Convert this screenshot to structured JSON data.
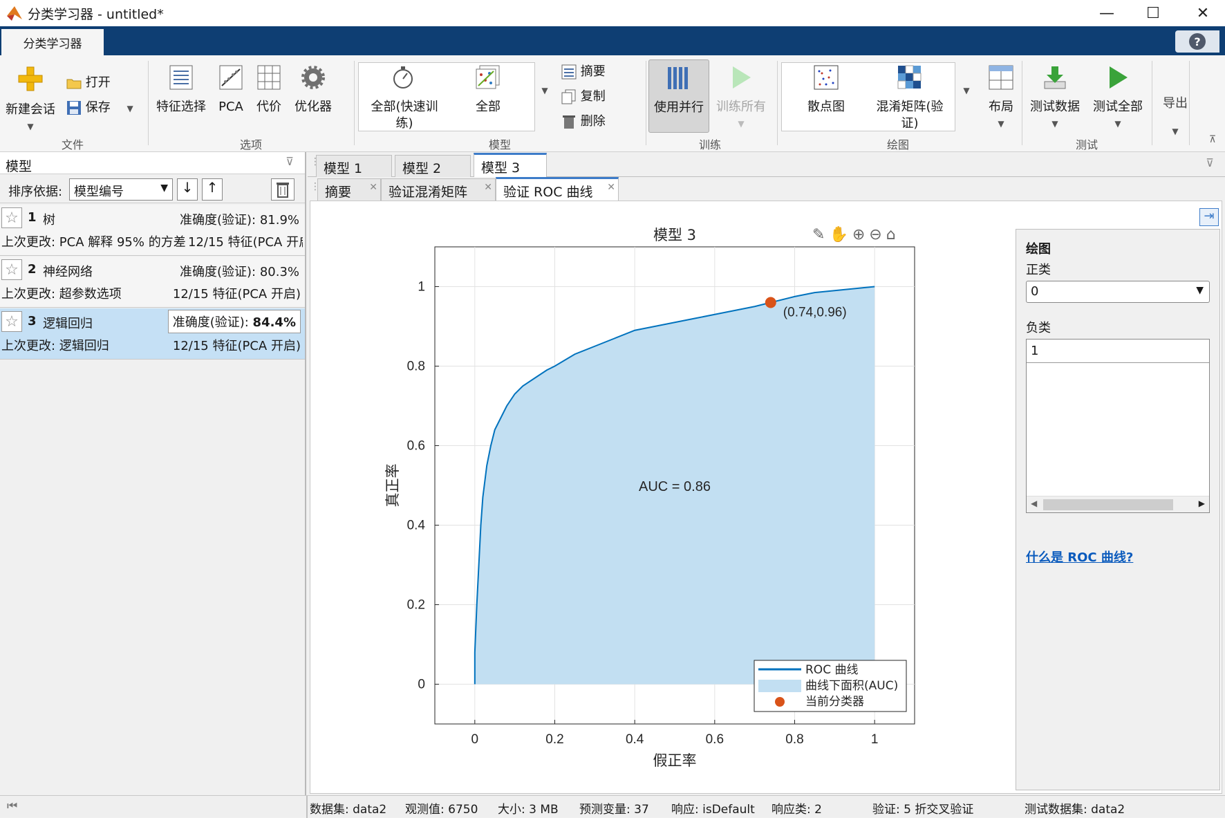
{
  "window": {
    "title": "分类学习器 - untitled*",
    "minimize": "—",
    "maximize": "☐",
    "close": "✕"
  },
  "ribbon_tab": "分类学习器",
  "help": "?",
  "ribbon": {
    "file": {
      "new_session": "新建会话",
      "open": "打开",
      "save": "保存",
      "section": "文件"
    },
    "options": {
      "feature_selection": "特征选择",
      "pca": "PCA",
      "cost": "代价",
      "optimizer": "优化器",
      "section": "选项"
    },
    "models": {
      "all_quick": "全部(快速训练)",
      "all_quick_l1": "全部(快速训",
      "all_quick_l2": "练)",
      "all": "全部",
      "summary": "摘要",
      "duplicate": "复制",
      "delete": "删除",
      "section": "模型"
    },
    "train": {
      "use_parallel": "使用并行",
      "train_all": "训练所有",
      "section": "训练"
    },
    "plot": {
      "scatter": "散点图",
      "confusion_l1": "混淆矩阵(验",
      "confusion_l2": "证)",
      "layout": "布局",
      "section": "绘图"
    },
    "test": {
      "test_data": "测试数据",
      "test_all": "测试全部",
      "section": "测试"
    },
    "export": {
      "label": "导出"
    }
  },
  "left_panel": {
    "header": "模型",
    "sort_label": "排序依据:",
    "sort_value": "模型编号",
    "models": [
      {
        "num": "1",
        "name": "树",
        "accuracy": "准确度(验证): 81.9%",
        "last_change": "上次更改: PCA 解释 95% 的方差",
        "features": "12/15 特征(PCA 开启"
      },
      {
        "num": "2",
        "name": "神经网络",
        "accuracy": "准确度(验证): 80.3%",
        "last_change": "上次更改: 超参数选项",
        "features": "12/15 特征(PCA 开启)"
      },
      {
        "num": "3",
        "name": "逻辑回归",
        "accuracy_label": "准确度(验证): ",
        "accuracy_value": "84.4%",
        "last_change": "上次更改: 逻辑回归",
        "features": "12/15 特征(PCA 开启)"
      }
    ]
  },
  "model_tabs": [
    "模型 1",
    "模型 2",
    "模型 3"
  ],
  "sub_tabs": [
    "摘要",
    "验证混淆矩阵",
    "验证 ROC 曲线"
  ],
  "chart_data": {
    "type": "area",
    "title": "模型 3",
    "xlabel": "假正率",
    "ylabel": "真正率",
    "xlim": [
      -0.1,
      1.1
    ],
    "ylim": [
      -0.1,
      1.1
    ],
    "xticks": [
      "0",
      "0.2",
      "0.4",
      "0.6",
      "0.8",
      "1"
    ],
    "yticks": [
      "0",
      "0.2",
      "0.4",
      "0.6",
      "0.8",
      "1"
    ],
    "grid": true,
    "series": [
      {
        "name": "ROC 曲线",
        "x": [
          0,
          0,
          0.005,
          0.01,
          0.015,
          0.02,
          0.03,
          0.04,
          0.05,
          0.06,
          0.07,
          0.08,
          0.1,
          0.12,
          0.15,
          0.18,
          0.2,
          0.25,
          0.3,
          0.35,
          0.4,
          0.45,
          0.5,
          0.55,
          0.6,
          0.65,
          0.7,
          0.74,
          0.8,
          0.85,
          0.9,
          0.95,
          1.0
        ],
        "y": [
          0,
          0.08,
          0.2,
          0.3,
          0.4,
          0.47,
          0.55,
          0.6,
          0.64,
          0.66,
          0.68,
          0.7,
          0.73,
          0.75,
          0.77,
          0.79,
          0.8,
          0.83,
          0.85,
          0.87,
          0.89,
          0.9,
          0.91,
          0.92,
          0.93,
          0.94,
          0.95,
          0.96,
          0.975,
          0.985,
          0.99,
          0.995,
          1.0
        ]
      }
    ],
    "auc_label": "AUC = 0.86",
    "current_point": {
      "x": 0.74,
      "y": 0.96,
      "label": "(0.74,0.96)"
    },
    "legend": {
      "placement": "bottom-right",
      "entries": [
        "ROC 曲线",
        "曲线下面积(AUC)",
        "当前分类器"
      ]
    },
    "colors": {
      "line": "#0072bd",
      "fill": "#c2dff2",
      "point": "#d95319"
    }
  },
  "right_panel": {
    "title": "绘图",
    "positive_label": "正类",
    "positive_value": "0",
    "negative_label": "负类",
    "negative_items": [
      "1"
    ],
    "link": "什么是 ROC 曲线?"
  },
  "status": {
    "dataset": "数据集: data2",
    "observations": "观测值: 6750",
    "size": "大小: 3 MB",
    "predictors": "预测变量: 37",
    "response": "响应: isDefault",
    "classes": "响应类: 2",
    "validation": "验证: 5 折交叉验证",
    "test_dataset": "测试数据集: data2"
  }
}
